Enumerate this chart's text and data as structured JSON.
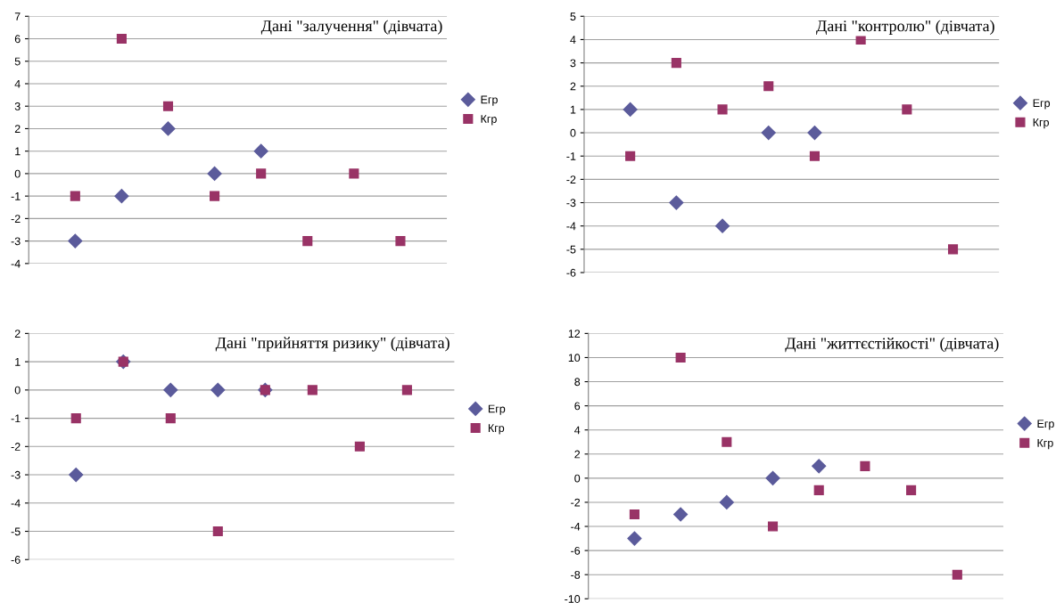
{
  "chart_data": [
    {
      "type": "scatter",
      "title": "Дані \"залучення\" (дівчата)",
      "categories": [
        null,
        null,
        null,
        null,
        null,
        null,
        null,
        null
      ],
      "ylim": [
        -4,
        7
      ],
      "yticks": [
        -4,
        -3,
        -2,
        -1,
        0,
        1,
        2,
        3,
        4,
        5,
        6,
        7
      ],
      "grid": "y",
      "legend": "right",
      "tick_labels": "y",
      "series": [
        {
          "name": "Егр",
          "color": "#5b5b9b",
          "marker": "diamond",
          "values": [
            -3,
            -1,
            2,
            0,
            1,
            null,
            null,
            null
          ]
        },
        {
          "name": "Кгр",
          "color": "#993366",
          "marker": "square",
          "values": [
            -1,
            6,
            3,
            -1,
            0,
            -3,
            0,
            -3
          ]
        }
      ]
    },
    {
      "type": "scatter",
      "title": "Дані \"контролю\" (дівчата)",
      "categories": [
        null,
        null,
        null,
        null,
        null,
        null,
        null,
        null
      ],
      "ylim": [
        -6,
        5
      ],
      "yticks": [
        -6,
        -5,
        -4,
        -3,
        -2,
        -1,
        0,
        1,
        2,
        3,
        4,
        5
      ],
      "grid": "y",
      "legend": "right",
      "tick_labels": "y",
      "series": [
        {
          "name": "Егр",
          "color": "#5b5b9b",
          "marker": "diamond",
          "values": [
            1,
            -3,
            -4,
            0,
            0,
            null,
            null,
            null
          ]
        },
        {
          "name": "Кгр",
          "color": "#993366",
          "marker": "square",
          "values": [
            -1,
            3,
            1,
            2,
            -1,
            4,
            1,
            -5
          ]
        }
      ]
    },
    {
      "type": "scatter",
      "title": "Дані \"прийняття ризику\" (дівчата)",
      "categories": [
        null,
        null,
        null,
        null,
        null,
        null,
        null,
        null
      ],
      "ylim": [
        -6,
        2
      ],
      "yticks": [
        -6,
        -5,
        -4,
        -3,
        -2,
        -1,
        0,
        1,
        2
      ],
      "grid": "y",
      "legend": "right",
      "tick_labels": "y",
      "series": [
        {
          "name": "Егр",
          "color": "#5b5b9b",
          "marker": "diamond",
          "values": [
            -3,
            1,
            0,
            0,
            0,
            null,
            null,
            null
          ]
        },
        {
          "name": "Кгр",
          "color": "#993366",
          "marker": "square",
          "values": [
            -1,
            1,
            -1,
            -5,
            0,
            0,
            -2,
            0
          ]
        }
      ]
    },
    {
      "type": "scatter",
      "title": "Дані \"життєстійкості\" (дівчата)",
      "categories": [
        null,
        null,
        null,
        null,
        null,
        null,
        null,
        null
      ],
      "ylim": [
        -10,
        12
      ],
      "yticks": [
        -10,
        -8,
        -6,
        -4,
        -2,
        0,
        2,
        4,
        6,
        8,
        10,
        12
      ],
      "grid": "y",
      "legend": "right",
      "tick_labels": "y",
      "series": [
        {
          "name": "Егр",
          "color": "#5b5b9b",
          "marker": "diamond",
          "values": [
            -5,
            -3,
            -2,
            0,
            1,
            null,
            null,
            null
          ]
        },
        {
          "name": "Кгр",
          "color": "#993366",
          "marker": "square",
          "values": [
            -3,
            10,
            3,
            -4,
            -1,
            1,
            -1,
            -8
          ]
        }
      ]
    }
  ]
}
